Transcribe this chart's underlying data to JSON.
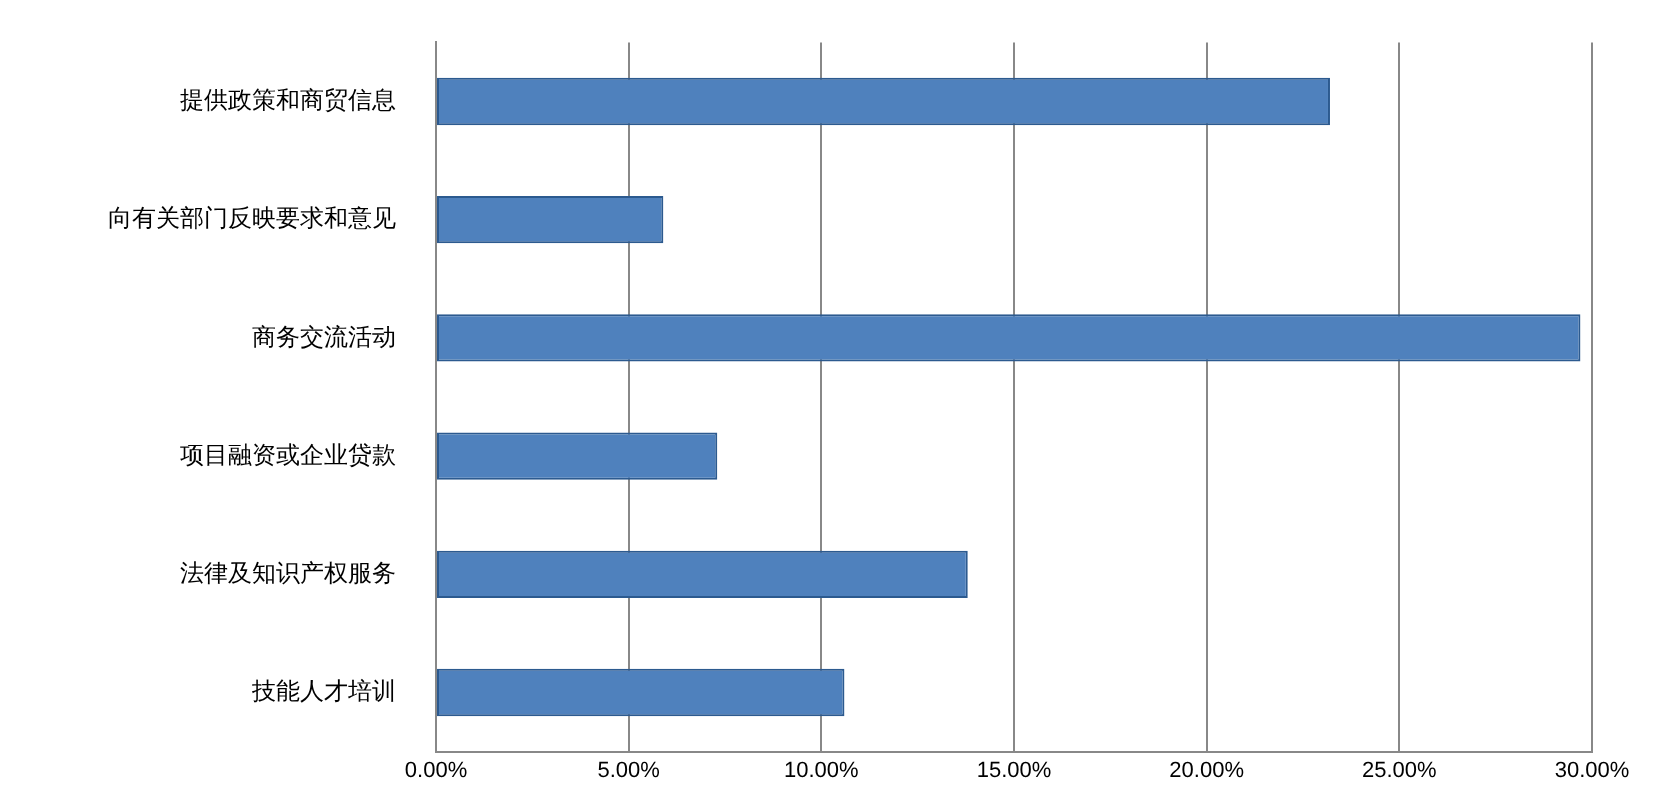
{
  "chart_data": {
    "type": "bar",
    "orientation": "horizontal",
    "categories": [
      "提供政策和商贸信息",
      "向有关部门反映要求和意见",
      "商务交流活动",
      "项目融资或企业贷款",
      "法律及知识产权服务",
      "技能人才培训"
    ],
    "values": [
      23.2,
      5.9,
      29.7,
      7.3,
      13.8,
      10.6
    ],
    "color": "#4f81bd",
    "xlim": [
      0,
      30
    ],
    "xticks": [
      {
        "value": 0,
        "label": "0.00%"
      },
      {
        "value": 5,
        "label": "5.00%"
      },
      {
        "value": 10,
        "label": "10.00%"
      },
      {
        "value": 15,
        "label": "15.00%"
      },
      {
        "value": 20,
        "label": "20.00%"
      },
      {
        "value": 25,
        "label": "25.00%"
      },
      {
        "value": 30,
        "label": "30.00%"
      }
    ],
    "grid": "x",
    "legend": false
  }
}
